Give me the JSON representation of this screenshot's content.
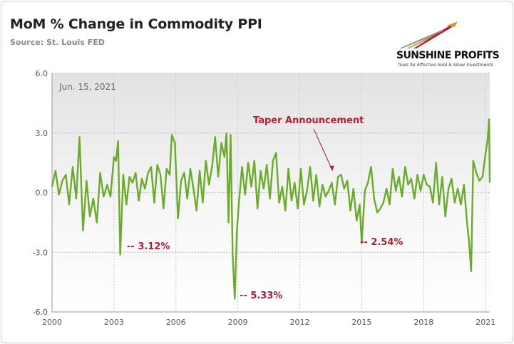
{
  "header": {
    "title": "MoM % Change in Commodity PPI",
    "subtitle": "Source: St. Louis FED"
  },
  "logo": {
    "name": "SUNSHINE PROFITS",
    "tagline": "Tools for Effective Gold & Silver Investments"
  },
  "colors": {
    "line": "#6aab2a",
    "annotation": "#b01e35",
    "plot_bg_top": "#e4e4e4"
  },
  "chart_data": {
    "type": "line",
    "title": "MoM % Change in Commodity PPI",
    "xlabel": "",
    "ylabel": "",
    "ylim": [
      -6.0,
      6.0
    ],
    "xlim": [
      2000,
      2021.2
    ],
    "y_ticks": [
      "6.0",
      "3.0",
      "0.0",
      "-3.0",
      "-6.0"
    ],
    "x_ticks": [
      "2000",
      "2003",
      "2006",
      "2009",
      "2012",
      "2015",
      "2018",
      "2021"
    ],
    "grid": "horizontal",
    "date_label": "Jun. 15, 2021",
    "annotations": [
      {
        "text": "Taper Announcement",
        "arrow_to": [
          2013.55,
          0.9
        ]
      },
      {
        "text": "-- 3.12%",
        "x": 2003.2,
        "y": -3.12
      },
      {
        "text": "-- 5.33%",
        "x": 2008.8,
        "y": -5.33
      },
      {
        "text": "-- 2.54%",
        "x": 2015.0,
        "y": -2.54
      }
    ],
    "series": [
      {
        "x": [
          2000.0,
          2000.17,
          2000.33,
          2000.5,
          2000.67,
          2000.83,
          2001.0,
          2001.17,
          2001.33,
          2001.5,
          2001.67,
          2001.83,
          2002.0,
          2002.17,
          2002.33,
          2002.5,
          2002.67,
          2002.83,
          2003.0,
          2003.1,
          2003.2,
          2003.3,
          2003.45,
          2003.6,
          2003.75,
          2003.9,
          2004.05,
          2004.2,
          2004.35,
          2004.5,
          2004.65,
          2004.8,
          2004.95,
          2005.1,
          2005.25,
          2005.4,
          2005.55,
          2005.7,
          2005.8,
          2005.95,
          2006.1,
          2006.25,
          2006.4,
          2006.55,
          2006.7,
          2006.85,
          2007.0,
          2007.15,
          2007.3,
          2007.45,
          2007.6,
          2007.75,
          2007.9,
          2008.05,
          2008.2,
          2008.35,
          2008.45,
          2008.55,
          2008.65,
          2008.75,
          2008.85,
          2008.95,
          2009.05,
          2009.2,
          2009.35,
          2009.5,
          2009.65,
          2009.8,
          2009.95,
          2010.1,
          2010.25,
          2010.4,
          2010.55,
          2010.7,
          2010.85,
          2011.0,
          2011.15,
          2011.3,
          2011.45,
          2011.6,
          2011.75,
          2011.9,
          2012.05,
          2012.2,
          2012.35,
          2012.5,
          2012.65,
          2012.8,
          2012.95,
          2013.1,
          2013.25,
          2013.4,
          2013.55,
          2013.7,
          2013.85,
          2014.0,
          2014.15,
          2014.3,
          2014.45,
          2014.6,
          2014.75,
          2014.9,
          2015.0,
          2015.15,
          2015.3,
          2015.45,
          2015.6,
          2015.75,
          2015.9,
          2016.05,
          2016.2,
          2016.35,
          2016.5,
          2016.65,
          2016.8,
          2016.95,
          2017.1,
          2017.25,
          2017.4,
          2017.55,
          2017.7,
          2017.85,
          2018.0,
          2018.15,
          2018.3,
          2018.45,
          2018.6,
          2018.75,
          2018.9,
          2019.05,
          2019.2,
          2019.35,
          2019.5,
          2019.65,
          2019.8,
          2019.95,
          2020.1,
          2020.2,
          2020.3,
          2020.4,
          2020.55,
          2020.7,
          2020.85,
          2021.0,
          2021.1,
          2021.17,
          2021.2
        ],
        "values": [
          0.3,
          1.1,
          -0.1,
          0.6,
          0.9,
          -0.6,
          1.3,
          -0.3,
          2.8,
          -1.9,
          0.6,
          -1.2,
          -0.3,
          -1.5,
          1.0,
          -0.2,
          0.4,
          -0.2,
          1.8,
          1.6,
          2.6,
          -3.12,
          0.9,
          -0.6,
          0.8,
          0.5,
          1.0,
          -0.4,
          0.7,
          0.2,
          1.0,
          1.3,
          -0.5,
          1.4,
          0.9,
          -0.8,
          1.2,
          0.9,
          2.9,
          2.5,
          -1.3,
          0.6,
          1.0,
          -0.3,
          1.2,
          0.2,
          -0.9,
          1.1,
          -0.5,
          1.6,
          0.4,
          1.3,
          2.8,
          0.8,
          2.5,
          1.8,
          3.0,
          -1.5,
          2.9,
          -3.2,
          -5.33,
          -2.0,
          -0.5,
          1.3,
          -0.1,
          1.5,
          0.3,
          1.6,
          -0.8,
          1.1,
          0.2,
          1.4,
          -0.3,
          1.6,
          2.0,
          -0.5,
          0.3,
          -0.9,
          1.2,
          -0.4,
          0.5,
          -0.8,
          1.2,
          -0.6,
          0.1,
          1.3,
          -0.4,
          0.9,
          -0.7,
          0.4,
          -0.2,
          0.1,
          0.5,
          -0.6,
          0.8,
          0.9,
          0.2,
          0.6,
          -0.9,
          0.2,
          -1.4,
          -0.6,
          -2.54,
          0.1,
          0.5,
          1.3,
          -0.3,
          -1.0,
          -0.8,
          -0.5,
          0.2,
          -0.6,
          1.2,
          0.1,
          0.8,
          -0.2,
          1.3,
          0.4,
          0.7,
          -0.3,
          0.9,
          0.1,
          0.9,
          0.4,
          0.3,
          -0.5,
          1.5,
          -0.6,
          0.8,
          -1.2,
          0.2,
          0.7,
          -0.5,
          0.2,
          -0.6,
          0.4,
          -1.5,
          -2.5,
          -3.95,
          1.6,
          1.0,
          0.6,
          0.8,
          2.0,
          2.7,
          3.7,
          0.5
        ]
      }
    ]
  }
}
